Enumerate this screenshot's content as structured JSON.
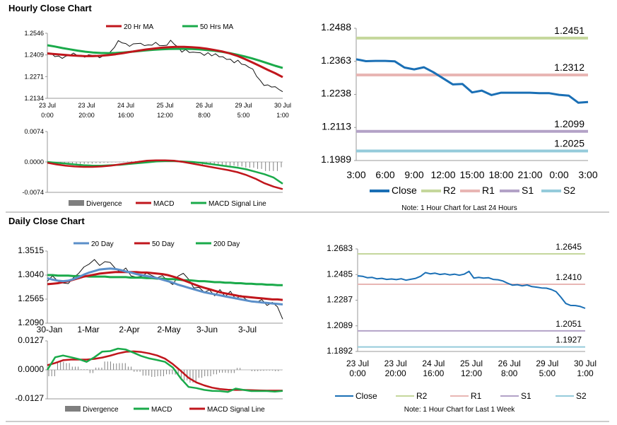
{
  "sections": {
    "hourly_title": "Hourly Close Chart",
    "daily_title": "Daily Close Chart"
  },
  "colors": {
    "close_blue": "#1a6fb5",
    "ma20_red": "#c0161c",
    "ma50_green": "#1aaa4a",
    "ma20_blue": "#5b8fc9",
    "r2": "#c5d79c",
    "r1": "#e8b6b4",
    "s1": "#b3a2c7",
    "s2": "#95cbdb",
    "divergence": "#7f7f7f"
  },
  "chart_data": [
    {
      "id": "hourly_price",
      "type": "line",
      "y_ticks": [
        "1.2546",
        "1.2409",
        "1.2271",
        "1.2134"
      ],
      "ylim": [
        1.2134,
        1.2546
      ],
      "x_ticks": [
        [
          "23 Jul",
          "0:00"
        ],
        [
          "23 Jul",
          "20:00"
        ],
        [
          "24 Jul",
          "16:00"
        ],
        [
          "25 Jul",
          "12:00"
        ],
        [
          "26 Jul",
          "8:00"
        ],
        [
          "29 Jul",
          "5:00"
        ],
        [
          "30 Jul",
          "1:00"
        ]
      ],
      "legend": [
        "20 Hr MA",
        "50 Hrs MA"
      ],
      "series": [
        {
          "name": "Close",
          "values": [
            1.2425,
            1.2416,
            1.2404,
            1.2398,
            1.2392,
            1.2399,
            1.2409,
            1.2414,
            1.2408,
            1.2402,
            1.2397,
            1.2405,
            1.2412,
            1.2403,
            1.2396,
            1.2401,
            1.2411,
            1.2426,
            1.2461,
            1.2494,
            1.2488,
            1.2476,
            1.2469,
            1.2475,
            1.2486,
            1.2479,
            1.2472,
            1.2466,
            1.2474,
            1.2483,
            1.2471,
            1.2463,
            1.2476,
            1.2498,
            1.2481,
            1.2455,
            1.2431,
            1.2437,
            1.2428,
            1.2421,
            1.2427,
            1.2418,
            1.2412,
            1.2419,
            1.2408,
            1.2413,
            1.2402,
            1.2391,
            1.2384,
            1.2376,
            1.2362,
            1.2371,
            1.2356,
            1.2342,
            1.2335,
            1.2316,
            1.2278,
            1.2241,
            1.2219,
            1.2214,
            1.2208,
            1.2203,
            1.2196,
            1.2172
          ]
        },
        {
          "name": "20 Hr MA",
          "values": [
            1.2418,
            1.2414,
            1.241,
            1.2406,
            1.2403,
            1.2401,
            1.2401,
            1.2403,
            1.2407,
            1.2413,
            1.242,
            1.2428,
            1.2436,
            1.2443,
            1.2449,
            1.2454,
            1.2458,
            1.246,
            1.246,
            1.2458,
            1.2454,
            1.2448,
            1.244,
            1.2431,
            1.2419,
            1.2403,
            1.2383,
            1.2361,
            1.2338,
            1.2315,
            1.2293,
            1.2268
          ]
        },
        {
          "name": "50 Hrs MA",
          "values": [
            1.247,
            1.2462,
            1.2452,
            1.2444,
            1.2436,
            1.2429,
            1.2424,
            1.2421,
            1.242,
            1.2421,
            1.2424,
            1.2428,
            1.2433,
            1.2437,
            1.2441,
            1.2444,
            1.2446,
            1.2447,
            1.2447,
            1.2446,
            1.2444,
            1.244,
            1.2435,
            1.2428,
            1.242,
            1.241,
            1.2399,
            1.2386,
            1.2372,
            1.2356,
            1.234,
            1.2326
          ]
        }
      ]
    },
    {
      "id": "hourly_macd",
      "type": "line",
      "y_ticks": [
        "0.0074",
        "0.0000",
        "-0.0074"
      ],
      "ylim": [
        -0.0074,
        0.0074
      ],
      "legend": [
        "Divergence",
        "MACD",
        "MACD Signal Line"
      ],
      "series": [
        {
          "name": "MACD",
          "values": [
            -0.0002,
            -0.0006,
            -0.0009,
            -0.0011,
            -0.0012,
            -0.0012,
            -0.0011,
            -0.0009,
            -0.0006,
            -0.0003,
            0.0,
            0.0003,
            0.0004,
            0.0004,
            0.0003,
            0.0,
            -0.0004,
            -0.0008,
            -0.0012,
            -0.0016,
            -0.002,
            -0.0025,
            -0.0032,
            -0.0041,
            -0.0052,
            -0.006,
            -0.0066
          ]
        },
        {
          "name": "MACD Signal Line",
          "values": [
            0.0,
            -0.0002,
            -0.0004,
            -0.0006,
            -0.0008,
            -0.0009,
            -0.0009,
            -0.0008,
            -0.0007,
            -0.0005,
            -0.0003,
            -0.0001,
            0.0001,
            0.0002,
            0.0002,
            0.0001,
            0.0,
            -0.0002,
            -0.0005,
            -0.0008,
            -0.0011,
            -0.0014,
            -0.0018,
            -0.0024,
            -0.003,
            -0.0038,
            -0.0053
          ]
        }
      ]
    },
    {
      "id": "hourly_levels",
      "type": "line",
      "y_ticks": [
        "1.2488",
        "1.2363",
        "1.2238",
        "1.2113",
        "1.1989"
      ],
      "ylim": [
        1.1989,
        1.2488
      ],
      "x_ticks": [
        "3:00",
        "6:00",
        "9:00",
        "12:00",
        "15:00",
        "18:00",
        "21:00",
        "0:00",
        "3:00"
      ],
      "level_labels": {
        "R2": "1.2451",
        "R1": "1.2312",
        "S1": "1.2099",
        "S2": "1.2025"
      },
      "levels": {
        "R2": 1.2451,
        "R1": 1.2312,
        "S1": 1.2099,
        "S2": 1.2025
      },
      "legend": [
        "Close",
        "R2",
        "R1",
        "S1",
        "S2"
      ],
      "note": "Note: 1 Hour Chart for Last 24 Hours",
      "series": [
        {
          "name": "Close",
          "values": [
            1.2371,
            1.2364,
            1.2365,
            1.2365,
            1.2363,
            1.234,
            1.2333,
            1.2341,
            1.2322,
            1.2299,
            1.2276,
            1.2278,
            1.2246,
            1.2253,
            1.2236,
            1.2245,
            1.2245,
            1.2245,
            1.2245,
            1.2243,
            1.2243,
            1.2237,
            1.2234,
            1.2207,
            1.221
          ]
        }
      ]
    },
    {
      "id": "daily_price",
      "type": "line",
      "y_ticks": [
        "1.3515",
        "1.3040",
        "1.2565",
        "1.2090"
      ],
      "ylim": [
        1.209,
        1.3515
      ],
      "x_ticks": [
        "30-Jan",
        "1-Mar",
        "2-Apr",
        "2-May",
        "3-Jun",
        "3-Jul"
      ],
      "legend": [
        "20 Day",
        "50 Day",
        "200 Day"
      ],
      "series": [
        {
          "name": "Close",
          "values": [
            1.293,
            1.301,
            1.294,
            1.287,
            1.289,
            1.298,
            1.309,
            1.318,
            1.327,
            1.333,
            1.324,
            1.329,
            1.331,
            1.316,
            1.311,
            1.317,
            1.304,
            1.298,
            1.303,
            1.306,
            1.304,
            1.297,
            1.305,
            1.291,
            1.287,
            1.301,
            1.309,
            1.294,
            1.28,
            1.278,
            1.271,
            1.273,
            1.265,
            1.274,
            1.263,
            1.271,
            1.258,
            1.262,
            1.257,
            1.25,
            1.251,
            1.254,
            1.246,
            1.249,
            1.243,
            1.216
          ]
        },
        {
          "name": "20 Day",
          "values": [
            1.298,
            1.295,
            1.293,
            1.292,
            1.293,
            1.296,
            1.3,
            1.305,
            1.309,
            1.312,
            1.315,
            1.316,
            1.317,
            1.316,
            1.314,
            1.311,
            1.309,
            1.306,
            1.304,
            1.302,
            1.3,
            1.298,
            1.295,
            1.292,
            1.289,
            1.285,
            1.282,
            1.279,
            1.276,
            1.273,
            1.27,
            1.268,
            1.266,
            1.264,
            1.262,
            1.26,
            1.258,
            1.256,
            1.254,
            1.252,
            1.251,
            1.25,
            1.249,
            1.248,
            1.247,
            1.246
          ]
        },
        {
          "name": "50 Day",
          "values": [
            1.286,
            1.287,
            1.288,
            1.29,
            1.292,
            1.295,
            1.298,
            1.301,
            1.303,
            1.305,
            1.307,
            1.308,
            1.309,
            1.31,
            1.31,
            1.31,
            1.31,
            1.31,
            1.309,
            1.309,
            1.308,
            1.307,
            1.306,
            1.304,
            1.301,
            1.298,
            1.294,
            1.29,
            1.286,
            1.282,
            1.279,
            1.276,
            1.273,
            1.27,
            1.268,
            1.266,
            1.264,
            1.262,
            1.261,
            1.26,
            1.259,
            1.258,
            1.257,
            1.256,
            1.256,
            1.255
          ]
        },
        {
          "name": "200 Day",
          "values": [
            1.304,
            1.304,
            1.303,
            1.303,
            1.303,
            1.302,
            1.302,
            1.302,
            1.301,
            1.301,
            1.301,
            1.301,
            1.3,
            1.3,
            1.3,
            1.3,
            1.299,
            1.299,
            1.299,
            1.298,
            1.298,
            1.297,
            1.297,
            1.296,
            1.296,
            1.295,
            1.294,
            1.294,
            1.293,
            1.292,
            1.292,
            1.291,
            1.29,
            1.29,
            1.289,
            1.289,
            1.288,
            1.288,
            1.287,
            1.287,
            1.286,
            1.286,
            1.285,
            1.285,
            1.284,
            1.284
          ]
        }
      ]
    },
    {
      "id": "daily_macd",
      "type": "line",
      "y_ticks": [
        "0.0127",
        "0.0000",
        "-0.0127"
      ],
      "ylim": [
        -0.0127,
        0.0127
      ],
      "legend": [
        "Divergence",
        "MACD",
        "MACD Signal Line"
      ],
      "series": [
        {
          "name": "MACD",
          "values": [
            0.0,
            0.0055,
            0.0063,
            0.0055,
            0.0047,
            0.0035,
            0.0055,
            0.008,
            0.0082,
            0.0093,
            0.0089,
            0.0075,
            0.006,
            0.005,
            0.0043,
            0.0035,
            0.001,
            -0.0037,
            -0.0075,
            -0.008,
            -0.0088,
            -0.0092,
            -0.0093,
            -0.0097,
            -0.0082,
            -0.0088,
            -0.0093,
            -0.0093,
            -0.0093,
            -0.0095,
            -0.0092
          ]
        },
        {
          "name": "MACD Signal Line",
          "values": [
            0.002,
            0.003,
            0.0042,
            0.0045,
            0.0045,
            0.0045,
            0.0048,
            0.0054,
            0.0062,
            0.0072,
            0.0079,
            0.0081,
            0.0078,
            0.0072,
            0.0063,
            0.0049,
            0.0025,
            -0.0004,
            -0.0035,
            -0.0055,
            -0.0068,
            -0.0078,
            -0.0084,
            -0.0087,
            -0.0088,
            -0.0088,
            -0.0089,
            -0.009,
            -0.0091,
            -0.0091,
            -0.0091
          ]
        }
      ]
    },
    {
      "id": "daily_levels",
      "type": "line",
      "y_ticks": [
        "1.2683",
        "1.2485",
        "1.2287",
        "1.2089",
        "1.1892"
      ],
      "ylim": [
        1.1892,
        1.2683
      ],
      "x_ticks": [
        [
          "23 Jul",
          "0:00"
        ],
        [
          "23 Jul",
          "20:00"
        ],
        [
          "24 Jul",
          "16:00"
        ],
        [
          "25 Jul",
          "12:00"
        ],
        [
          "26 Jul",
          "8:00"
        ],
        [
          "29 Jul",
          "5:00"
        ],
        [
          "30 Jul",
          "1:00"
        ]
      ],
      "level_labels": {
        "R2": "1.2645",
        "R1": "1.2410",
        "S1": "1.2051",
        "S2": "1.1927"
      },
      "levels": {
        "R2": 1.2645,
        "R1": 1.241,
        "S1": 1.2051,
        "S2": 1.1927
      },
      "legend": [
        "Close",
        "R2",
        "R1",
        "S1",
        "S2"
      ],
      "note": "Note: 1 Hour Chart for Last 1 Week",
      "series": [
        {
          "name": "Close",
          "values": [
            1.2475,
            1.2472,
            1.2461,
            1.2463,
            1.2452,
            1.2456,
            1.2448,
            1.2451,
            1.2446,
            1.2453,
            1.2442,
            1.2449,
            1.2456,
            1.2472,
            1.25,
            1.2491,
            1.2496,
            1.2486,
            1.2491,
            1.2483,
            1.2488,
            1.248,
            1.2488,
            1.251,
            1.2458,
            1.2463,
            1.2458,
            1.2461,
            1.2448,
            1.2445,
            1.2436,
            1.2418,
            1.2403,
            1.2407,
            1.2398,
            1.2405,
            1.2392,
            1.2388,
            1.2382,
            1.238,
            1.237,
            1.2353,
            1.231,
            1.2262,
            1.2247,
            1.2246,
            1.2239,
            1.2225
          ]
        }
      ]
    }
  ]
}
